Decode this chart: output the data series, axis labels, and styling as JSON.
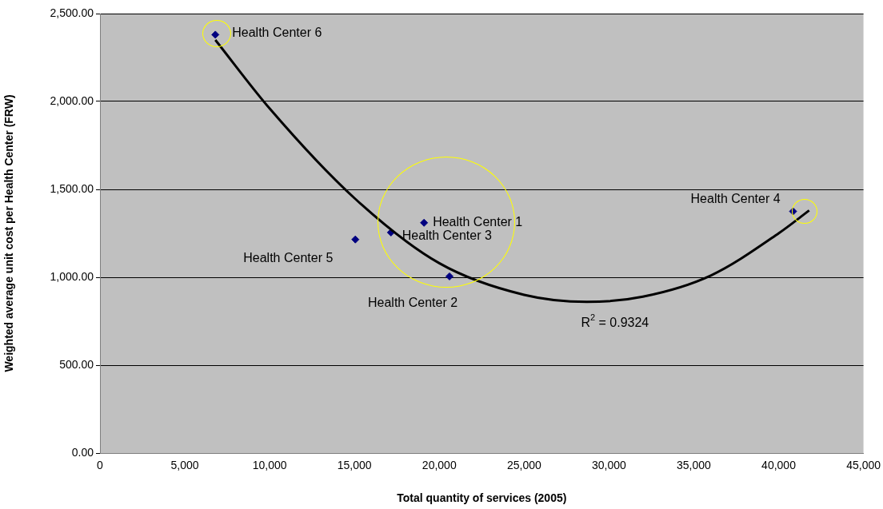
{
  "chart_data": {
    "type": "scatter",
    "xlabel": "Total quantity of services (2005)",
    "ylabel": "Weighted average unit cost per Health Center (FRW)",
    "xlim": [
      0,
      45000
    ],
    "xticks": [
      {
        "value": 0,
        "label": "0"
      },
      {
        "value": 5000,
        "label": "5,000"
      },
      {
        "value": 10000,
        "label": "10,000"
      },
      {
        "value": 15000,
        "label": "15,000"
      },
      {
        "value": 20000,
        "label": "20,000"
      },
      {
        "value": 25000,
        "label": "25,000"
      },
      {
        "value": 30000,
        "label": "30,000"
      },
      {
        "value": 35000,
        "label": "35,000"
      },
      {
        "value": 40000,
        "label": "40,000"
      },
      {
        "value": 45000,
        "label": "45,000"
      }
    ],
    "ylim": [
      0,
      2500
    ],
    "yticks": [
      {
        "value": 0,
        "label": "0.00"
      },
      {
        "value": 500,
        "label": "500.00"
      },
      {
        "value": 1000,
        "label": "1,000.00"
      },
      {
        "value": 1500,
        "label": "1,500.00"
      },
      {
        "value": 2000,
        "label": "2,000.00"
      },
      {
        "value": 2500,
        "label": "2,500.00"
      }
    ],
    "grid": "y",
    "legend": false,
    "marker": "diamond",
    "series": [
      {
        "name": "Health Center 1",
        "color": "#000080",
        "x": [
          19100
        ],
        "values": [
          1310
        ]
      },
      {
        "name": "Health Center 2",
        "color": "#000080",
        "x": [
          20600
        ],
        "values": [
          1005
        ]
      },
      {
        "name": "Health Center 3",
        "color": "#000080",
        "x": [
          17150
        ],
        "values": [
          1255
        ]
      },
      {
        "name": "Health Center 4",
        "color": "#000080",
        "x": [
          40850
        ],
        "values": [
          1375
        ]
      },
      {
        "name": "Health Center 5",
        "color": "#000080",
        "x": [
          15050
        ],
        "values": [
          1215
        ]
      },
      {
        "name": "Health Center 6",
        "color": "#000080",
        "x": [
          6800
        ],
        "values": [
          2380
        ]
      },
      {
        "type": "line",
        "color": "#000000",
        "marker": "none",
        "x": [
          6800,
          10000,
          15000,
          20000,
          25000,
          28700,
          32000,
          36000,
          40000,
          41800
        ],
        "values": [
          2350,
          1960,
          1450,
          1080,
          900,
          860,
          890,
          1010,
          1250,
          1380
        ]
      }
    ],
    "annotations": [
      {
        "text": "R$^{2}$ = 0.9324",
        "x": 30000,
        "y": 860
      }
    ]
  }
}
